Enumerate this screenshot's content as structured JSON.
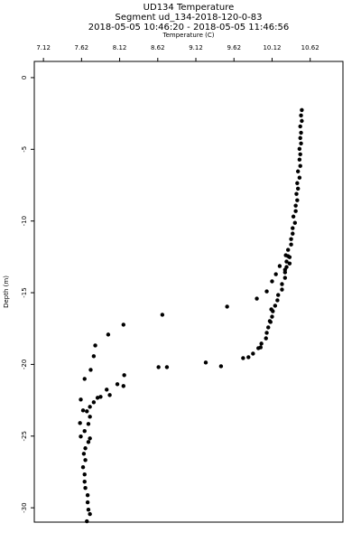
{
  "chart_data": {
    "type": "scatter",
    "title": "UD134 Temperature",
    "subtitle": "Segment ud_134-2018-120-0-83",
    "time_range": "2018-05-05 10:46:20 - 2018-05-05 11:46:56",
    "x_label": "Temperature (C)",
    "y_label": "Depth (m)",
    "color": "#000000",
    "xlim": [
      7.0,
      11.05
    ],
    "xticks": [
      7.12,
      7.62,
      8.12,
      8.62,
      9.12,
      9.62,
      10.12,
      10.62
    ],
    "ylim": [
      -31.0,
      1.13
    ],
    "yticks": [
      0,
      -5,
      -10,
      -15,
      -20,
      -25,
      -30
    ],
    "x": [
      10.51,
      10.5,
      10.51,
      10.49,
      10.5,
      10.49,
      10.5,
      10.48,
      10.49,
      10.48,
      10.49,
      10.46,
      10.48,
      10.45,
      10.46,
      10.44,
      10.45,
      10.43,
      10.43,
      10.4,
      10.42,
      10.39,
      10.39,
      10.37,
      10.37,
      10.33,
      10.33,
      10.31,
      10.31,
      10.29,
      10.29,
      10.25,
      10.25,
      10.2,
      10.19,
      10.16,
      10.13,
      10.12,
      10.1,
      10.07,
      10.05,
      10.04,
      9.98,
      9.94,
      9.87,
      9.81,
      9.74,
      9.45,
      9.25,
      8.74,
      8.63,
      8.18,
      8.17,
      8.09,
      7.99,
      7.95,
      7.87,
      7.83,
      7.78,
      7.73,
      7.69,
      7.73,
      7.71,
      7.66,
      7.73,
      7.71,
      7.67,
      7.65,
      7.67,
      7.64,
      7.66,
      7.66,
      7.67,
      7.7,
      7.7,
      7.71,
      7.73,
      7.69,
      8.17,
      7.97,
      7.8,
      7.78,
      7.74,
      7.66,
      7.61,
      7.64,
      7.6,
      7.61,
      8.68,
      9.53,
      9.92,
      10.05,
      10.12,
      10.17,
      10.22,
      10.29,
      10.35,
      10.35,
      10.3,
      10.11,
      10.09,
      9.97
    ],
    "values": [
      -2.26,
      -2.64,
      -3.02,
      -3.4,
      -3.84,
      -4.21,
      -4.59,
      -4.97,
      -5.35,
      -5.72,
      -6.16,
      -6.54,
      -6.98,
      -7.36,
      -7.74,
      -8.11,
      -8.55,
      -8.93,
      -9.31,
      -9.69,
      -10.13,
      -10.5,
      -10.88,
      -11.26,
      -11.64,
      -12.01,
      -12.45,
      -12.83,
      -13.21,
      -13.58,
      -13.96,
      -14.4,
      -14.78,
      -15.16,
      -15.53,
      -15.91,
      -16.29,
      -16.67,
      -17.04,
      -17.42,
      -17.8,
      -18.18,
      -18.55,
      -18.87,
      -19.25,
      -19.5,
      -19.56,
      -20.13,
      -19.87,
      -20.19,
      -20.19,
      -20.75,
      -21.51,
      -21.38,
      -22.14,
      -21.76,
      -22.26,
      -22.33,
      -22.64,
      -22.96,
      -23.27,
      -23.65,
      -24.15,
      -24.65,
      -25.16,
      -25.41,
      -25.85,
      -26.23,
      -26.67,
      -27.17,
      -27.67,
      -28.18,
      -28.62,
      -29.12,
      -29.62,
      -30.13,
      -30.44,
      -30.94,
      -17.23,
      -17.92,
      -18.68,
      -19.43,
      -20.38,
      -21.01,
      -22.45,
      -23.21,
      -24.09,
      -25.03,
      -16.54,
      -15.97,
      -15.41,
      -14.91,
      -14.21,
      -13.71,
      -13.14,
      -13.4,
      -12.96,
      -12.52,
      -12.39,
      -16.16,
      -16.98,
      -18.81
    ]
  }
}
